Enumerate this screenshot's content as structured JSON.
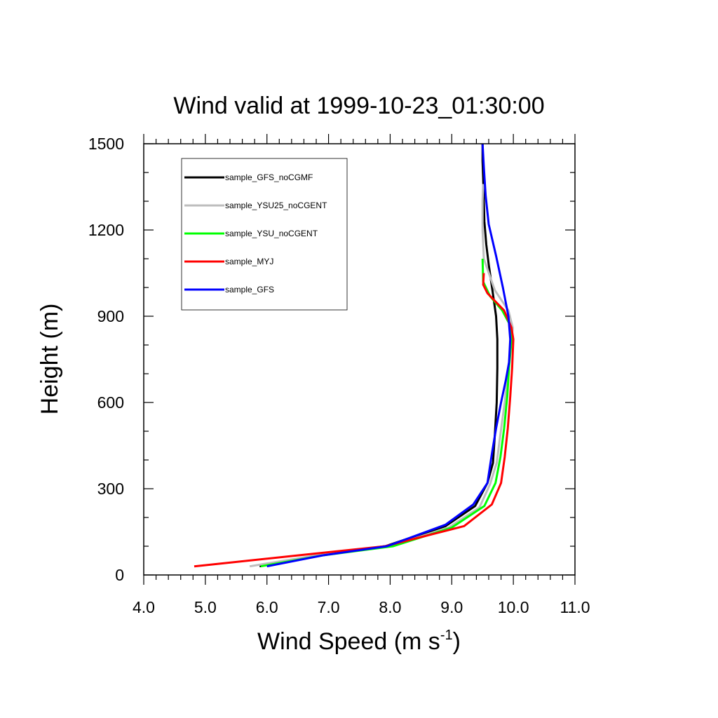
{
  "chart_data": {
    "type": "line",
    "title": "Wind valid at 1999-10-23_01:30:00",
    "xlabel": "Wind Speed (m s",
    "xlabel_sup": "-1",
    "xlabel_end": ")",
    "ylabel": "Height (m)",
    "xlim": [
      4.0,
      11.0
    ],
    "ylim": [
      0,
      1500
    ],
    "x_ticks": [
      "4.0",
      "5.0",
      "6.0",
      "7.0",
      "8.0",
      "9.0",
      "10.0",
      "11.0"
    ],
    "y_ticks": [
      "0",
      "300",
      "600",
      "900",
      "1200",
      "1500"
    ],
    "legend_position": "top-left",
    "grid": false,
    "series": [
      {
        "name": "sample_GFS_noCGMF",
        "color": "#000000",
        "width": 3,
        "x": [
          5.88,
          6.8,
          7.92,
          8.9,
          9.38,
          9.58,
          9.67,
          9.7,
          9.73,
          9.74,
          9.74,
          9.72,
          9.66,
          9.6,
          9.56,
          9.53,
          9.52,
          9.51,
          9.5,
          9.5
        ],
        "y": [
          30,
          68,
          100,
          170,
          240,
          320,
          390,
          490,
          600,
          720,
          820,
          900,
          990,
          1080,
          1150,
          1230,
          1300,
          1380,
          1440,
          1500
        ]
      },
      {
        "name": "sample_YSU25_noCGENT",
        "color": "#bebebe",
        "width": 3,
        "x": [
          5.72,
          6.8,
          8.0,
          8.95,
          9.45,
          9.62,
          9.73,
          9.79,
          9.86,
          9.92,
          9.97,
          9.99,
          9.92,
          9.7,
          9.52,
          9.5,
          9.5,
          9.51
        ],
        "y": [
          30,
          68,
          100,
          165,
          235,
          315,
          390,
          490,
          600,
          720,
          820,
          860,
          920,
          990,
          1100,
          1200,
          1300,
          1360
        ]
      },
      {
        "name": "sample_YSU_noCGENT",
        "color": "#00ff00",
        "width": 3,
        "x": [
          5.9,
          6.9,
          8.05,
          9.0,
          9.53,
          9.71,
          9.79,
          9.85,
          9.9,
          9.93,
          9.97,
          9.97,
          9.82,
          9.62,
          9.51,
          9.5
        ],
        "y": [
          30,
          68,
          100,
          165,
          240,
          320,
          410,
          510,
          620,
          720,
          820,
          860,
          920,
          970,
          1020,
          1100
        ]
      },
      {
        "name": "sample_MYJ",
        "color": "#ff0000",
        "width": 3,
        "x": [
          4.82,
          6.5,
          7.92,
          9.2,
          9.65,
          9.8,
          9.86,
          9.91,
          9.95,
          9.98,
          10.0,
          9.97,
          9.85,
          9.58,
          9.51,
          9.52
        ],
        "y": [
          30,
          68,
          100,
          170,
          245,
          320,
          410,
          510,
          620,
          720,
          820,
          860,
          920,
          980,
          1010,
          1050
        ]
      },
      {
        "name": "sample_GFS",
        "color": "#0000ff",
        "width": 3,
        "x": [
          6.0,
          6.9,
          7.95,
          8.9,
          9.35,
          9.58,
          9.65,
          9.72,
          9.8,
          9.88,
          9.93,
          9.95,
          9.92,
          9.83,
          9.72,
          9.6,
          9.55,
          9.52,
          9.5
        ],
        "y": [
          30,
          68,
          100,
          175,
          245,
          320,
          420,
          510,
          600,
          680,
          740,
          820,
          900,
          1000,
          1110,
          1220,
          1320,
          1420,
          1500
        ]
      }
    ]
  }
}
